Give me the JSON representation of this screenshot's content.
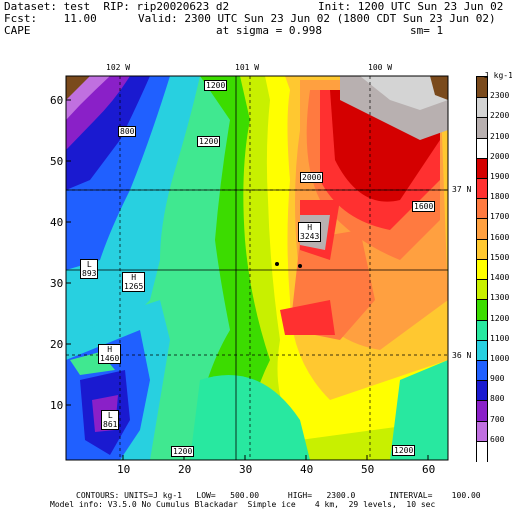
{
  "header": {
    "dataset_label": "Dataset: test  RIP: rip20020623 d2",
    "init": "Init: 1200 UTC Sun 23 Jun 02",
    "fcst_label": "Fcst:    11.00",
    "valid": "Valid: 2300 UTC Sun 23 Jun 02 (1800 CDT Sun 23 Jun 02)",
    "field": "CAPE",
    "sigma": "at sigma = 0.998",
    "sm": "sm= 1"
  },
  "axes": {
    "top_labels": [
      "102 W",
      "101 W",
      "100 W"
    ],
    "right_labels": [
      "37 N",
      "36 N"
    ],
    "x_ticks": [
      "10",
      "20",
      "30",
      "40",
      "50",
      "60"
    ],
    "y_ticks": [
      "10",
      "20",
      "30",
      "40",
      "50",
      "60"
    ]
  },
  "colorbar": {
    "unit": "J kg-1",
    "levels": [
      "2300",
      "2200",
      "2100",
      "2000",
      "1900",
      "1800",
      "1700",
      "1600",
      "1500",
      "1400",
      "1300",
      "1200",
      "1100",
      "1000",
      "900",
      "800",
      "700",
      "600"
    ],
    "colors": [
      "#7a4a1c",
      "#d4d4d4",
      "#b8b0b0",
      "#ffffff",
      "#d40000",
      "#ff3030",
      "#ff7a40",
      "#ffa040",
      "#ffc830",
      "#ffff00",
      "#c8f000",
      "#3cdc00",
      "#28e8a0",
      "#28d0e0",
      "#2060ff",
      "#1a1ad0",
      "#8a20c8",
      "#c070e0",
      "#ffffff"
    ]
  },
  "labels": {
    "h1": "H\n3243",
    "l1": "L\n893",
    "h2": "H\n1265",
    "h3": "H\n1460",
    "l2": "L\n861",
    "c800": "800",
    "c1200a": "1200",
    "c1200b": "1200",
    "c1200c": "1200",
    "c1200d": "1200",
    "c2000": "2000",
    "c1600": "1600"
  },
  "footer": {
    "line1": "CONTOURS: UNITS=J kg-1   LOW=   500.00      HIGH=   2300.0       INTERVAL=    100.00",
    "line2": "Model info: V3.5.0 No Cumulus Blackadar  Simple ice    4 km,  29 levels,  10 sec"
  }
}
